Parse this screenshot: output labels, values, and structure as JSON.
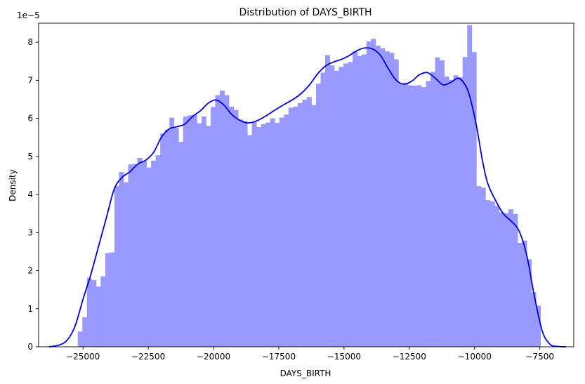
{
  "chart_data": {
    "type": "bar",
    "title": "Distribution of DAYS_BIRTH",
    "xlabel": "DAYS_BIRTH",
    "ylabel": "Density",
    "y_offset_text": "1e−5",
    "y_scale": 1e-05,
    "xlim": [
      -26700,
      -6200
    ],
    "ylim": [
      0,
      8.5
    ],
    "grid": false,
    "legend": "none",
    "x_ticks": [
      -25000,
      -22500,
      -20000,
      -17500,
      -15000,
      -12500,
      -10000,
      -7500
    ],
    "x_tick_labels": [
      "−25000",
      "−22500",
      "−20000",
      "−17500",
      "−15000",
      "−12500",
      "−10000",
      "−7500"
    ],
    "y_ticks": [
      0,
      1,
      2,
      3,
      4,
      5,
      6,
      7,
      8
    ],
    "y_tick_labels": [
      "0",
      "1",
      "2",
      "3",
      "4",
      "5",
      "6",
      "7",
      "8"
    ],
    "histogram": {
      "x_start": -25200,
      "bin_width": 175.5,
      "color": "#9999ff",
      "values": [
        0.4,
        0.78,
        1.8,
        1.75,
        1.58,
        1.85,
        2.46,
        2.48,
        4.22,
        4.59,
        4.32,
        4.79,
        4.8,
        4.96,
        4.88,
        4.71,
        4.89,
        5.03,
        5.6,
        5.7,
        6.02,
        5.75,
        5.38,
        6.05,
        6.08,
        6.09,
        5.87,
        6.05,
        5.8,
        6.3,
        6.61,
        6.73,
        6.61,
        6.31,
        6.22,
        5.97,
        5.93,
        5.56,
        5.9,
        5.77,
        5.85,
        5.89,
        6.0,
        5.88,
        6.02,
        6.1,
        6.28,
        6.31,
        6.4,
        6.49,
        6.56,
        6.35,
        6.91,
        7.2,
        7.66,
        7.39,
        7.25,
        7.35,
        7.44,
        7.48,
        7.76,
        7.64,
        7.68,
        8.02,
        8.09,
        7.91,
        7.84,
        7.76,
        7.72,
        7.55,
        6.92,
        6.93,
        6.87,
        6.86,
        6.87,
        6.82,
        6.98,
        7.22,
        7.6,
        7.52,
        7.1,
        7.01,
        7.13,
        7.08,
        7.61,
        8.45,
        7.74,
        4.22,
        4.18,
        3.85,
        3.82,
        3.7,
        3.53,
        3.51,
        3.61,
        3.49,
        2.73,
        2.79,
        2.3,
        1.43,
        1.08
      ]
    },
    "kde": {
      "color": "#0000dd",
      "x": [
        -26300,
        -25900,
        -25600,
        -25300,
        -25000,
        -24700,
        -24400,
        -24100,
        -23800,
        -23500,
        -23200,
        -22900,
        -22600,
        -22300,
        -22000,
        -21700,
        -21400,
        -21100,
        -20800,
        -20500,
        -20200,
        -19900,
        -19600,
        -19300,
        -19000,
        -18700,
        -18400,
        -18100,
        -17800,
        -17500,
        -17200,
        -16900,
        -16600,
        -16300,
        -16000,
        -15700,
        -15400,
        -15100,
        -14800,
        -14500,
        -14200,
        -13900,
        -13600,
        -13300,
        -13000,
        -12700,
        -12400,
        -12100,
        -11800,
        -11500,
        -11200,
        -10900,
        -10600,
        -10300,
        -10100,
        -9900,
        -9700,
        -9500,
        -9200,
        -8900,
        -8600,
        -8300,
        -8000,
        -7700,
        -7400,
        -7100,
        -6800,
        -6500
      ],
      "y": [
        0.0,
        0.05,
        0.18,
        0.55,
        1.25,
        1.9,
        2.65,
        3.4,
        4.15,
        4.45,
        4.6,
        4.8,
        4.9,
        5.1,
        5.5,
        5.72,
        5.78,
        5.85,
        6.05,
        6.2,
        6.4,
        6.48,
        6.35,
        6.1,
        5.95,
        5.88,
        5.92,
        6.02,
        6.15,
        6.28,
        6.4,
        6.52,
        6.68,
        6.9,
        7.18,
        7.38,
        7.48,
        7.55,
        7.65,
        7.78,
        7.85,
        7.82,
        7.65,
        7.3,
        7.0,
        6.9,
        6.98,
        7.15,
        7.2,
        7.05,
        6.88,
        6.95,
        7.05,
        6.8,
        6.35,
        5.7,
        4.9,
        4.3,
        3.85,
        3.5,
        3.3,
        3.05,
        2.4,
        1.3,
        0.4,
        0.06,
        0.01,
        0.0
      ]
    }
  }
}
